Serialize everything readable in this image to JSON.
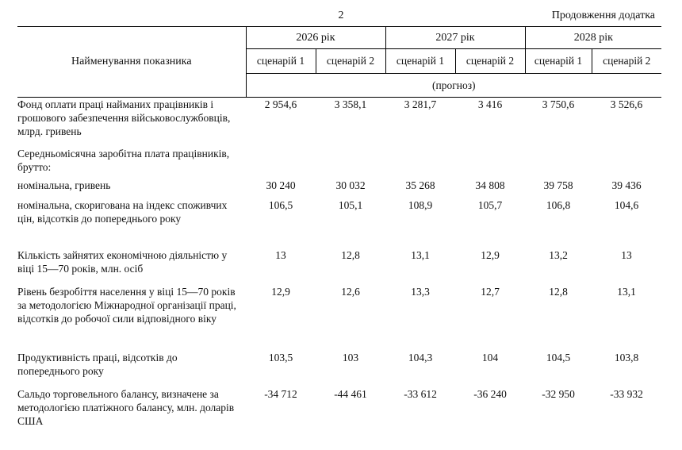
{
  "page_number": "2",
  "continuation_label": "Продовження додатка",
  "header": {
    "indicator_name": "Найменування показника",
    "years": [
      "2026 рік",
      "2027 рік",
      "2028 рік"
    ],
    "scenarios": [
      "сценарій 1",
      "сценарій 2",
      "сценарій 1",
      "сценарій 2",
      "сценарій 1",
      "сценарій 2"
    ],
    "forecast_label": "(прогноз)"
  },
  "rows": [
    {
      "label": "Фонд оплати праці найманих працівників і грошового забезпечення військовослужбовців, млрд. гривень",
      "values": [
        "2 954,6",
        "3 358,1",
        "3 281,7",
        "3 416",
        "3 750,6",
        "3 526,6"
      ]
    },
    {
      "label": "Середньомісячна заробітна плата працівників, брутто:",
      "values": [
        "",
        "",
        "",
        "",
        "",
        ""
      ]
    },
    {
      "label": "номінальна, гривень",
      "values": [
        "30 240",
        "30 032",
        "35 268",
        "34 808",
        "39 758",
        "39 436"
      ]
    },
    {
      "label": "номінальна, скоригована на індекс споживчих цін, відсотків до попереднього року",
      "values": [
        "106,5",
        "105,1",
        "108,9",
        "105,7",
        "106,8",
        "104,6"
      ]
    },
    {
      "label": "Кількість зайнятих економічною діяльністю у віці 15—70 років, млн. осіб",
      "values": [
        "13",
        "12,8",
        "13,1",
        "12,9",
        "13,2",
        "13"
      ]
    },
    {
      "label": "Рівень безробіття населення у віці 15—70 років за методологією Міжнародної організації праці, відсотків до робочої сили відповідного віку",
      "values": [
        "12,9",
        "12,6",
        "13,3",
        "12,7",
        "12,8",
        "13,1"
      ]
    },
    {
      "label": "Продуктивність праці, відсотків до попереднього року",
      "values": [
        "103,5",
        "103",
        "104,3",
        "104",
        "104,5",
        "103,8"
      ]
    },
    {
      "label": "Сальдо торговельного балансу, визначене за методологією платіжного балансу, млн. доларів США",
      "values": [
        "-34 712",
        "-44 461",
        "-33 612",
        "-36 240",
        "-32 950",
        "-33 932"
      ]
    }
  ]
}
